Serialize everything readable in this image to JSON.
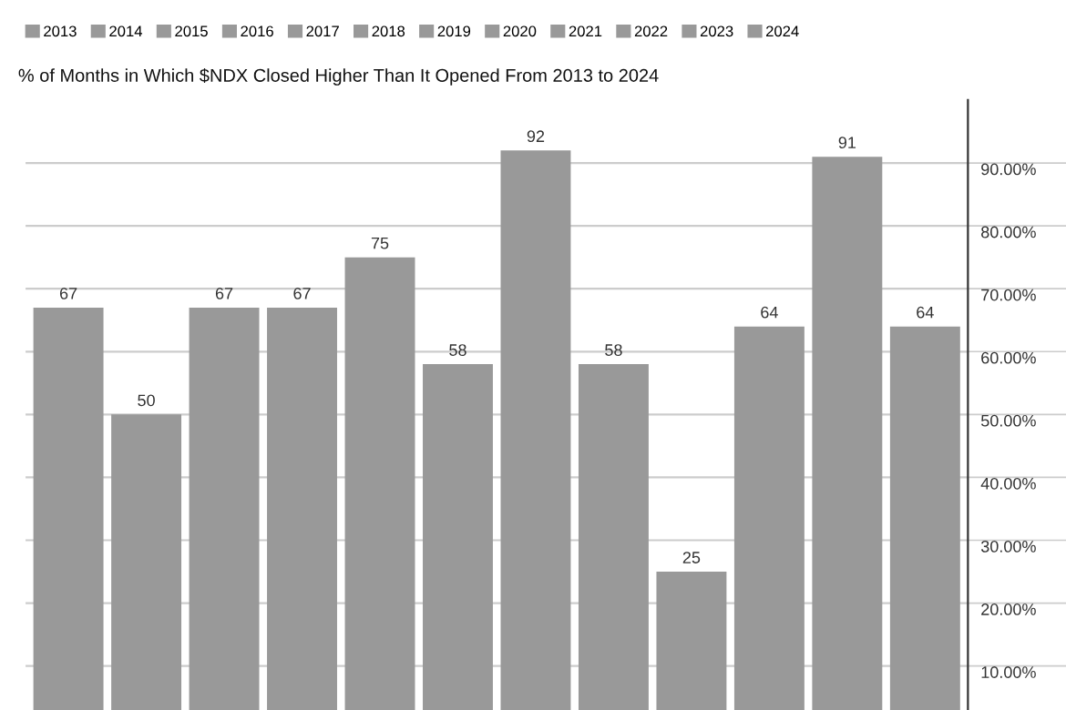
{
  "chart_data": {
    "type": "bar",
    "title": "% of Months in Which $NDX Closed Higher Than It Opened From 2013 to 2024",
    "categories": [
      null,
      null,
      null,
      null,
      null,
      null,
      null,
      null,
      null,
      null,
      null,
      null
    ],
    "series": [
      {
        "name": "2013",
        "color": "#999999",
        "values": [
          67,
          null,
          null,
          null,
          null,
          null,
          null,
          null,
          null,
          null,
          null,
          null
        ]
      },
      {
        "name": "2014",
        "color": "#999999",
        "values": [
          null,
          50,
          null,
          null,
          null,
          null,
          null,
          null,
          null,
          null,
          null,
          null
        ]
      },
      {
        "name": "2015",
        "color": "#999999",
        "values": [
          null,
          null,
          67,
          null,
          null,
          null,
          null,
          null,
          null,
          null,
          null,
          null
        ]
      },
      {
        "name": "2016",
        "color": "#999999",
        "values": [
          null,
          null,
          null,
          67,
          null,
          null,
          null,
          null,
          null,
          null,
          null,
          null
        ]
      },
      {
        "name": "2017",
        "color": "#999999",
        "values": [
          null,
          null,
          null,
          null,
          75,
          null,
          null,
          null,
          null,
          null,
          null,
          null
        ]
      },
      {
        "name": "2018",
        "color": "#999999",
        "values": [
          null,
          null,
          null,
          null,
          null,
          58,
          null,
          null,
          null,
          null,
          null,
          null
        ]
      },
      {
        "name": "2019",
        "color": "#999999",
        "values": [
          null,
          null,
          null,
          null,
          null,
          null,
          92,
          null,
          null,
          null,
          null,
          null
        ]
      },
      {
        "name": "2020",
        "color": "#999999",
        "values": [
          null,
          null,
          null,
          null,
          null,
          null,
          null,
          58,
          null,
          null,
          null,
          null
        ]
      },
      {
        "name": "2021",
        "color": "#999999",
        "values": [
          null,
          null,
          null,
          null,
          null,
          null,
          null,
          null,
          25,
          null,
          null,
          null
        ]
      },
      {
        "name": "2022",
        "color": "#999999",
        "values": [
          null,
          null,
          null,
          null,
          null,
          null,
          null,
          null,
          null,
          64,
          null,
          null
        ]
      },
      {
        "name": "2023",
        "color": "#999999",
        "values": [
          null,
          null,
          null,
          null,
          null,
          null,
          null,
          null,
          null,
          null,
          91,
          null
        ]
      },
      {
        "name": "2024",
        "color": "#999999",
        "values": [
          null,
          null,
          null,
          null,
          null,
          null,
          null,
          null,
          null,
          null,
          null,
          64
        ]
      }
    ],
    "ylim": [
      3,
      100
    ],
    "yticks": [
      {
        "value": 10,
        "label": "10.00%"
      },
      {
        "value": 20,
        "label": "20.00%"
      },
      {
        "value": 30,
        "label": "30.00%"
      },
      {
        "value": 40,
        "label": "40.00%"
      },
      {
        "value": 50,
        "label": "50.00%"
      },
      {
        "value": 60,
        "label": "60.00%"
      },
      {
        "value": 70,
        "label": "70.00%"
      },
      {
        "value": 80,
        "label": "80.00%"
      },
      {
        "value": 90,
        "label": "90.00%"
      }
    ],
    "stacked": true,
    "grid": "y",
    "data_labels": true,
    "legend": "top",
    "tick_labels": "y"
  }
}
